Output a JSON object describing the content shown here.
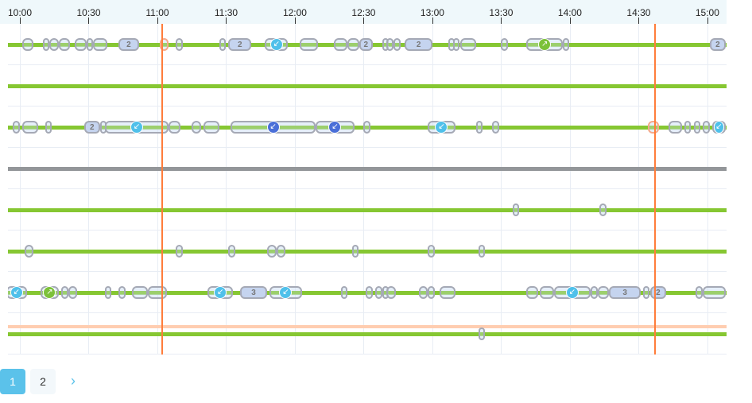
{
  "timeline": {
    "ticks": [
      "10:00",
      "10:30",
      "11:00",
      "11:30",
      "12:00",
      "12:30",
      "13:00",
      "13:30",
      "14:00",
      "14:30",
      "15:00"
    ],
    "current_markers": [
      "11:02",
      "14:37"
    ],
    "colors": {
      "line": "#86c732",
      "inactive_line": "#939699",
      "marker": "#ff7d3b",
      "icon_in": "#4fc0ea",
      "icon_in_dark": "#4a6fd8",
      "icon_out": "#7cc13a"
    },
    "rows": [
      {
        "status": "active",
        "events": [
          [
            "10:01",
            "10:06"
          ],
          [
            "10:10",
            "10:13"
          ],
          [
            "10:13",
            "10:17"
          ],
          [
            "10:17",
            "10:22"
          ],
          [
            "10:24",
            "10:29"
          ],
          [
            "10:29",
            "10:32"
          ],
          [
            "10:32",
            "10:38"
          ],
          [
            "10:43",
            "10:52",
            "count",
            "2"
          ],
          [
            "11:01",
            "11:05",
            "accent"
          ],
          [
            "11:08",
            "11:11"
          ],
          [
            "11:27",
            "11:29"
          ],
          [
            "11:31",
            "11:41",
            "count",
            "2"
          ],
          [
            "11:47",
            "11:57",
            "in"
          ],
          [
            "12:02",
            "12:10"
          ],
          [
            "12:17",
            "12:23"
          ],
          [
            "12:23",
            "12:28"
          ],
          [
            "12:28",
            "12:34",
            "count",
            "2"
          ],
          [
            "12:38",
            "12:40"
          ],
          [
            "12:40",
            "12:43"
          ],
          [
            "12:43",
            "12:46"
          ],
          [
            "12:48",
            "13:00",
            "count",
            "2"
          ],
          [
            "13:07",
            "13:09"
          ],
          [
            "13:09",
            "13:11"
          ],
          [
            "13:12",
            "13:19"
          ],
          [
            "13:30",
            "13:33"
          ],
          [
            "13:41",
            "13:57",
            "out"
          ],
          [
            "13:57",
            "13:59"
          ],
          [
            "15:01",
            "15:08",
            "count",
            "2"
          ]
        ]
      },
      {
        "status": "active",
        "events": []
      },
      {
        "status": "active",
        "events": [
          [
            "09:57",
            "10:00"
          ],
          [
            "10:01",
            "10:08"
          ],
          [
            "10:11",
            "10:14"
          ],
          [
            "10:28",
            "10:35",
            "count",
            "2"
          ],
          [
            "10:35",
            "10:37"
          ],
          [
            "10:37",
            "11:05",
            "in"
          ],
          [
            "11:05",
            "11:10"
          ],
          [
            "11:15",
            "11:19"
          ],
          [
            "11:20",
            "11:27"
          ],
          [
            "11:32",
            "12:09",
            "in-dark"
          ],
          [
            "12:09",
            "12:26",
            "in-dark"
          ],
          [
            "12:30",
            "12:33"
          ],
          [
            "12:58",
            "13:10",
            "in"
          ],
          [
            "13:19",
            "13:21"
          ],
          [
            "13:26",
            "13:29"
          ],
          [
            "14:34",
            "14:39",
            "accent"
          ],
          [
            "14:43",
            "14:49"
          ],
          [
            "14:50",
            "14:52"
          ],
          [
            "14:54",
            "14:57"
          ],
          [
            "14:58",
            "15:01"
          ],
          [
            "15:02",
            "15:08",
            "in"
          ]
        ]
      },
      {
        "status": "inactive",
        "events": []
      },
      {
        "status": "active",
        "events": [
          [
            "13:35",
            "13:38"
          ],
          [
            "14:13",
            "14:16"
          ]
        ]
      },
      {
        "status": "active",
        "events": [
          [
            "10:02",
            "10:06"
          ],
          [
            "11:08",
            "11:11"
          ],
          [
            "11:31",
            "11:34"
          ],
          [
            "11:48",
            "11:52"
          ],
          [
            "11:52",
            "11:56"
          ],
          [
            "12:25",
            "12:27"
          ],
          [
            "12:58",
            "13:01"
          ],
          [
            "13:20",
            "13:23"
          ]
        ]
      },
      {
        "status": "active",
        "events": [
          [
            "09:54",
            "10:03",
            "in"
          ],
          [
            "10:09",
            "10:17",
            "out"
          ],
          [
            "10:18",
            "10:21"
          ],
          [
            "10:21",
            "10:25"
          ],
          [
            "10:37",
            "10:40"
          ],
          [
            "10:43",
            "10:46"
          ],
          [
            "10:49",
            "10:56"
          ],
          [
            "10:56",
            "11:04"
          ],
          [
            "11:22",
            "11:33",
            "in"
          ],
          [
            "11:36",
            "11:48",
            "count",
            "3"
          ],
          [
            "11:49",
            "12:03",
            "in"
          ],
          [
            "12:20",
            "12:23"
          ],
          [
            "12:31",
            "12:34"
          ],
          [
            "12:35",
            "12:38"
          ],
          [
            "12:38",
            "12:40"
          ],
          [
            "12:40",
            "12:44"
          ],
          [
            "12:54",
            "12:58"
          ],
          [
            "12:58",
            "13:01"
          ],
          [
            "13:03",
            "13:10"
          ],
          [
            "13:41",
            "13:46"
          ],
          [
            "13:47",
            "13:53"
          ],
          [
            "13:53",
            "14:09",
            "in"
          ],
          [
            "14:09",
            "14:12"
          ],
          [
            "14:12",
            "14:17"
          ],
          [
            "14:17",
            "14:31",
            "count",
            "3"
          ],
          [
            "14:32",
            "14:34"
          ],
          [
            "14:35",
            "14:42",
            "count",
            "2"
          ],
          [
            "14:55",
            "14:58"
          ],
          [
            "14:58",
            "15:08"
          ]
        ]
      },
      {
        "status": "active",
        "planned": true,
        "events": [
          [
            "13:20",
            "13:23"
          ]
        ]
      }
    ]
  },
  "pagination": {
    "pages": [
      "1",
      "2"
    ],
    "current": "1",
    "next_icon": "chevron-right-icon",
    "next_label": "›"
  }
}
